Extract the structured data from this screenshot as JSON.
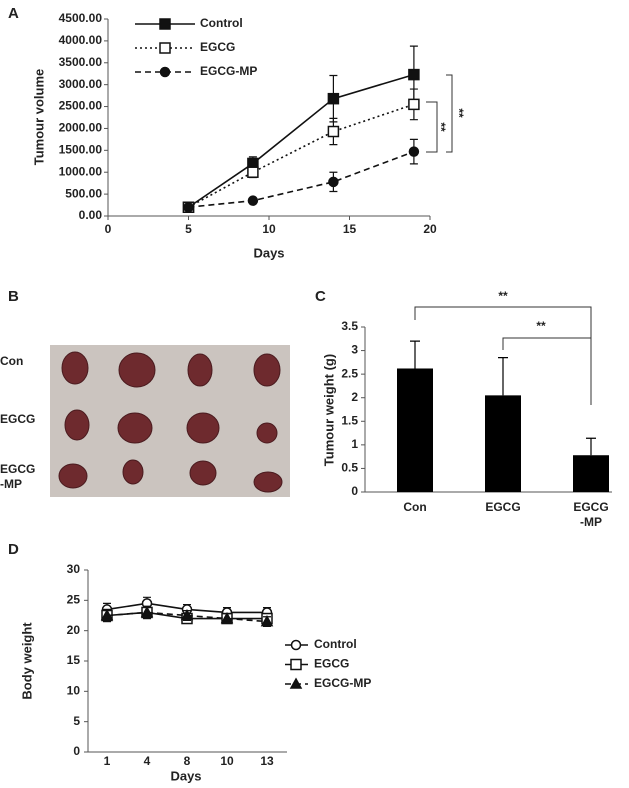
{
  "chart_data": [
    {
      "type": "line",
      "panel": "A",
      "x_label": "Days",
      "y_label": "Tumour volume",
      "x": [
        5,
        9,
        14,
        19
      ],
      "xlim": [
        0,
        20
      ],
      "xticks": [
        0,
        5,
        10,
        15,
        20
      ],
      "ylim": [
        0,
        4500
      ],
      "yticks": [
        {
          "value": 0,
          "label": "0.00"
        },
        {
          "value": 500,
          "label": "500.00"
        },
        {
          "value": 1000,
          "label": "1000.00"
        },
        {
          "value": 1500,
          "label": "1500.00"
        },
        {
          "value": 2000,
          "label": "2000.00"
        },
        {
          "value": 2500,
          "label": "2500.00"
        },
        {
          "value": 3000,
          "label": "3000.00"
        },
        {
          "value": 3500,
          "label": "3500.00"
        },
        {
          "value": 4000,
          "label": "4000.00"
        },
        {
          "value": 4500,
          "label": "4500.00"
        }
      ],
      "legend": "upper left",
      "series": [
        {
          "name": "Control",
          "color": "#111111",
          "marker": "square",
          "filled": true,
          "dash": "solid",
          "values": [
            200,
            1200,
            2680,
            3230
          ],
          "errors": [
            50,
            150,
            530,
            650
          ]
        },
        {
          "name": "EGCG",
          "color": "#111111",
          "marker": "square",
          "filled": false,
          "dash": "dotted",
          "values": [
            200,
            1000,
            1930,
            2550
          ],
          "errors": [
            30,
            120,
            300,
            350
          ]
        },
        {
          "name": "EGCG-MP",
          "color": "#111111",
          "marker": "circle",
          "filled": true,
          "dash": "dashed",
          "values": [
            200,
            350,
            780,
            1470
          ],
          "errors": [
            20,
            40,
            220,
            280
          ]
        }
      ],
      "annotations": [
        "**",
        "**"
      ]
    },
    {
      "type": "bar",
      "panel": "C",
      "y_label": "Tumour weight (g)",
      "categories": [
        "Con",
        "EGCG",
        "EGCG\n-MP"
      ],
      "values": [
        2.62,
        2.05,
        0.78
      ],
      "errors": [
        0.58,
        0.8,
        0.36
      ],
      "color": "#000000",
      "ylim": [
        0,
        3.5
      ],
      "yticks": [
        0,
        0.5,
        1,
        1.5,
        2,
        2.5,
        3,
        3.5
      ],
      "annotations": [
        "**",
        "**"
      ]
    },
    {
      "type": "line",
      "panel": "D",
      "x_label": "Days",
      "y_label": "Body weight",
      "categories": [
        "1",
        "4",
        "8",
        "10",
        "13"
      ],
      "ylim": [
        0,
        30
      ],
      "yticks": [
        0,
        5,
        10,
        15,
        20,
        25,
        30
      ],
      "legend": "right",
      "series": [
        {
          "name": "Control",
          "color": "#111111",
          "marker": "circle",
          "filled": false,
          "dash": "solid",
          "values": [
            23.5,
            24.5,
            23.5,
            23,
            23
          ],
          "errors": [
            1,
            1,
            0.8,
            0.8,
            0.8
          ]
        },
        {
          "name": "EGCG",
          "color": "#111111",
          "marker": "square",
          "filled": false,
          "dash": "solid",
          "values": [
            22.5,
            23,
            22,
            22,
            22
          ],
          "errors": [
            1,
            1,
            0.8,
            0.8,
            0.8
          ]
        },
        {
          "name": "EGCG-MP",
          "color": "#111111",
          "marker": "triangle",
          "filled": true,
          "dash": "dashed",
          "values": [
            22.5,
            23,
            22.5,
            22,
            21.5
          ],
          "errors": [
            1,
            1,
            0.8,
            0.8,
            0.8
          ]
        }
      ]
    }
  ],
  "photo": {
    "panel": "B",
    "row_labels": [
      "Con",
      "EGCG",
      "EGCG\n-MP"
    ]
  }
}
